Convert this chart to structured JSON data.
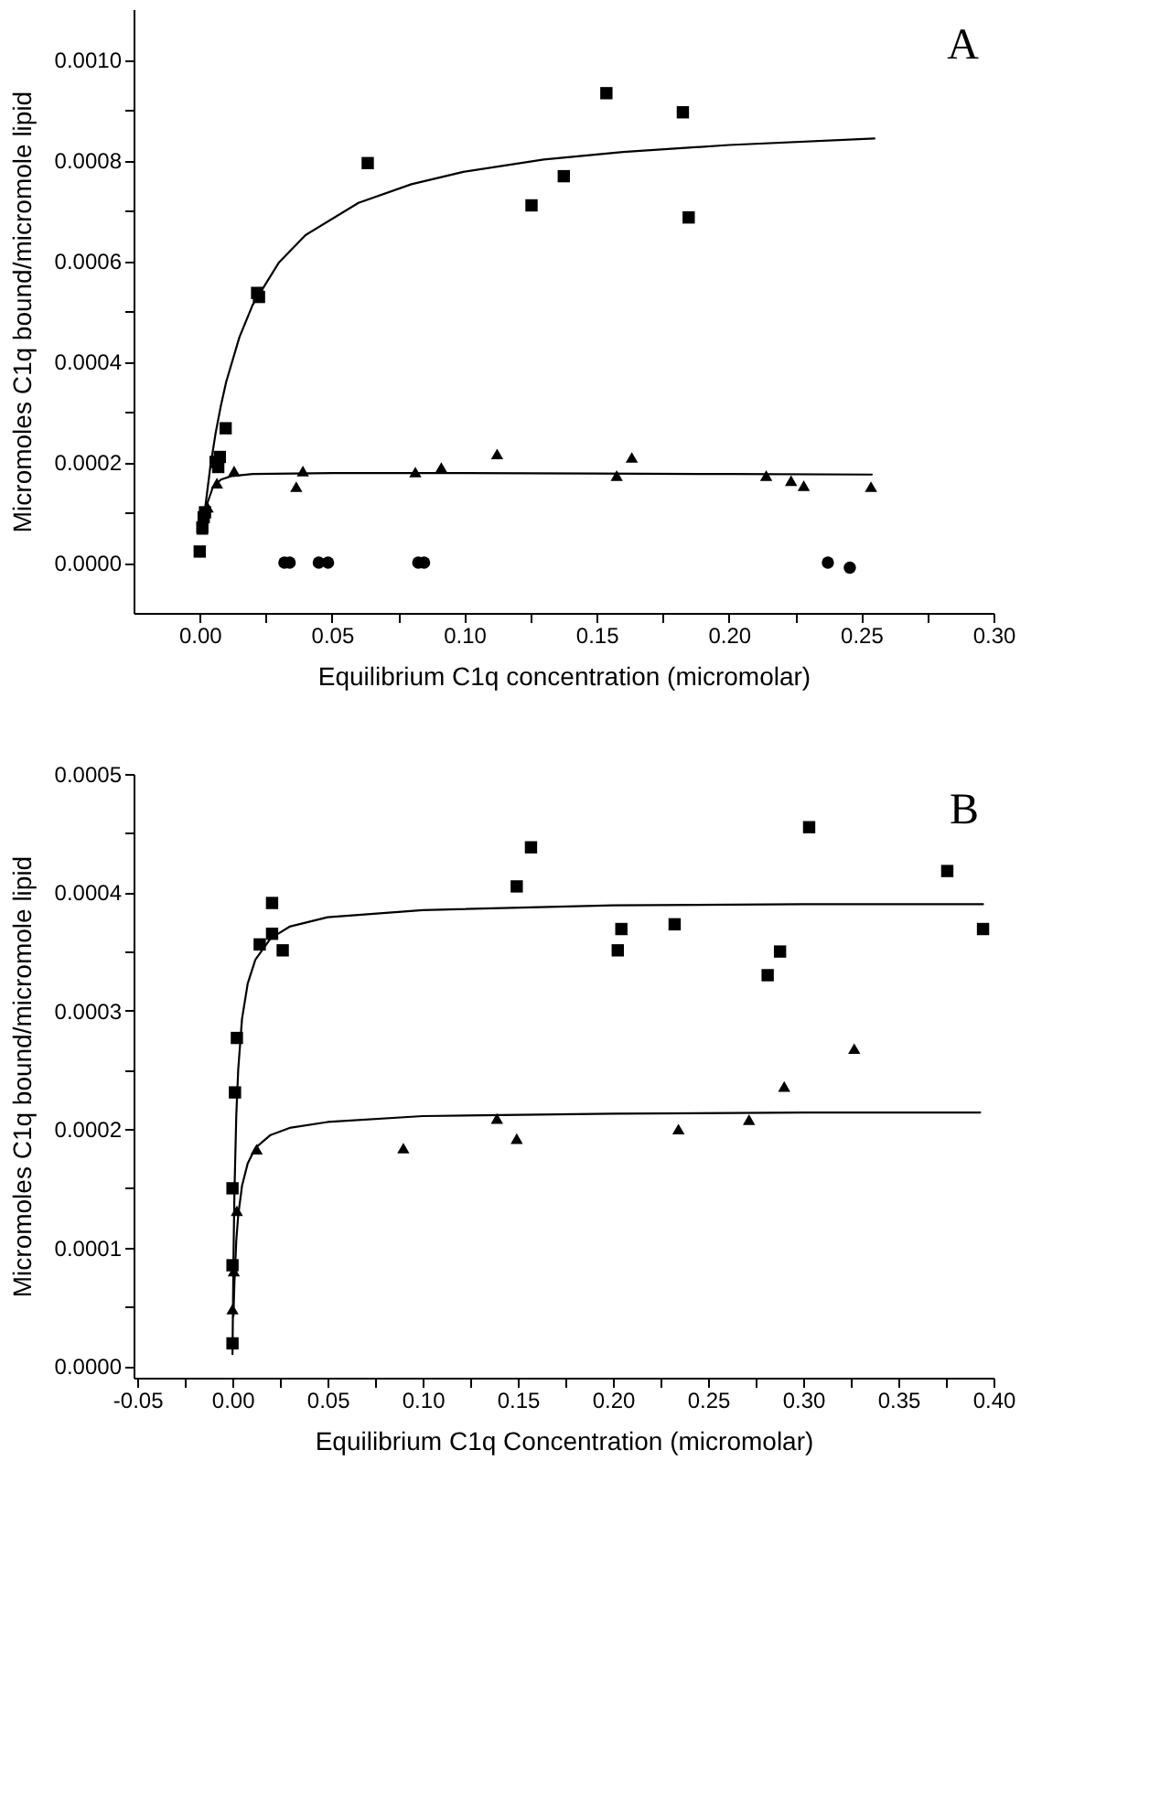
{
  "chart_data": [
    {
      "type": "scatter",
      "xlabel": "Equilibrium C1q concentration (micromolar)",
      "ylabel": "Micromoles C1q bound/micromole lipid",
      "annotations": [
        "A"
      ],
      "grid": false,
      "xlim": [
        -0.025,
        0.3
      ],
      "xticks": [
        {
          "value": 0,
          "label": "0.00"
        },
        {
          "value": 0.025,
          "label": null
        },
        {
          "value": 0.05,
          "label": "0.05"
        },
        {
          "value": 0.075,
          "label": null
        },
        {
          "value": 0.1,
          "label": "0.10"
        },
        {
          "value": 0.125,
          "label": null
        },
        {
          "value": 0.15,
          "label": "0.15"
        },
        {
          "value": 0.175,
          "label": null
        },
        {
          "value": 0.2,
          "label": "0.20"
        },
        {
          "value": 0.225,
          "label": null
        },
        {
          "value": 0.25,
          "label": "0.25"
        },
        {
          "value": 0.275,
          "label": null
        },
        {
          "value": 0.3,
          "label": "0.30"
        }
      ],
      "ylim": [
        -0.0001,
        0.0011
      ],
      "yticks": [
        {
          "value": 0,
          "label": "0.0000"
        },
        {
          "value": 0.0001,
          "label": null
        },
        {
          "value": 0.0002,
          "label": "0.0002"
        },
        {
          "value": 0.0003,
          "label": null
        },
        {
          "value": 0.0004,
          "label": "0.0004"
        },
        {
          "value": 0.0005,
          "label": null
        },
        {
          "value": 0.0006,
          "label": "0.0006"
        },
        {
          "value": 0.0007,
          "label": null
        },
        {
          "value": 0.0008,
          "label": "0.0008"
        },
        {
          "value": 0.0009,
          "label": null
        },
        {
          "value": 0.001,
          "label": "0.0010"
        }
      ],
      "series": [
        {
          "type": "line",
          "marker": "none",
          "line_style": "solid",
          "color": "#000000",
          "x": [
            0.002,
            0.004,
            0.006,
            0.008,
            0.01,
            0.015,
            0.02,
            0.03,
            0.04,
            0.06,
            0.08,
            0.1,
            0.13,
            0.16,
            0.2,
            0.255
          ],
          "values": [
            0.000106,
            0.00019,
            0.000257,
            0.000312,
            0.000359,
            0.000448,
            0.000512,
            0.000597,
            0.000651,
            0.000715,
            0.000752,
            0.000777,
            0.000801,
            0.000816,
            0.00083,
            0.000843
          ]
        },
        {
          "type": "line",
          "marker": "none",
          "line_style": "solid",
          "color": "#000000",
          "x": [
            0.001,
            0.003,
            0.005,
            0.008,
            0.012,
            0.02,
            0.05,
            0.1,
            0.15,
            0.2,
            0.254
          ],
          "values": [
            7e-05,
            0.00012,
            0.00015,
            0.000165,
            0.000172,
            0.000176,
            0.000178,
            0.000178,
            0.000177,
            0.000176,
            0.000175
          ]
        },
        {
          "marker": "square",
          "color": "#000000",
          "x": [
            0.0,
            0.001,
            0.0015,
            0.002,
            0.006,
            0.007,
            0.0076,
            0.0098,
            0.0217,
            0.0224,
            0.0635,
            0.1254,
            0.1376,
            0.1537,
            0.1826,
            0.1848
          ],
          "values": [
            2.2e-05,
            7e-05,
            9e-05,
            0.0001,
            0.0002,
            0.00019,
            0.00021,
            0.000267,
            0.000536,
            0.000528,
            0.000794,
            0.00071,
            0.000768,
            0.000933,
            0.000895,
            0.000686
          ]
        },
        {
          "marker": "triangle",
          "color": "#000000",
          "x": [
            0.001,
            0.003,
            0.0065,
            0.013,
            0.0365,
            0.039,
            0.0815,
            0.0913,
            0.1124,
            0.1576,
            0.1633,
            0.2141,
            0.2235,
            0.2283,
            0.2537
          ],
          "values": [
            6.6e-05,
            0.00011,
            0.000158,
            0.000182,
            0.000151,
            0.000182,
            0.00018,
            0.000189,
            0.000216,
            0.000173,
            0.000209,
            0.000173,
            0.000163,
            0.000153,
            0.000151
          ]
        },
        {
          "marker": "circle",
          "color": "#000000",
          "x": [
            0.032,
            0.034,
            0.045,
            0.0485,
            0.0826,
            0.0848,
            0.2374,
            0.2457
          ],
          "values": [
            0.0,
            0.0,
            0.0,
            0.0,
            0.0,
            0.0,
            0.0,
            -1e-05
          ]
        }
      ]
    },
    {
      "type": "scatter",
      "xlabel": "Equilibrium C1q Concentration (micromolar)",
      "ylabel": "Micromoles C1q bound/micromole lipid",
      "annotations": [
        "B"
      ],
      "grid": false,
      "xlim": [
        -0.052,
        0.4
      ],
      "xticks": [
        {
          "value": -0.05,
          "label": "-0.05"
        },
        {
          "value": -0.025,
          "label": null
        },
        {
          "value": 0,
          "label": "0.00"
        },
        {
          "value": 0.025,
          "label": null
        },
        {
          "value": 0.05,
          "label": "0.05"
        },
        {
          "value": 0.075,
          "label": null
        },
        {
          "value": 0.1,
          "label": "0.10"
        },
        {
          "value": 0.125,
          "label": null
        },
        {
          "value": 0.15,
          "label": "0.15"
        },
        {
          "value": 0.175,
          "label": null
        },
        {
          "value": 0.2,
          "label": "0.20"
        },
        {
          "value": 0.225,
          "label": null
        },
        {
          "value": 0.25,
          "label": "0.25"
        },
        {
          "value": 0.275,
          "label": null
        },
        {
          "value": 0.3,
          "label": "0.30"
        },
        {
          "value": 0.325,
          "label": null
        },
        {
          "value": 0.35,
          "label": "0.35"
        },
        {
          "value": 0.375,
          "label": null
        },
        {
          "value": 0.4,
          "label": "0.40"
        }
      ],
      "ylim": [
        -1e-05,
        0.0005
      ],
      "yticks": [
        {
          "value": 0,
          "label": "0.0000"
        },
        {
          "value": 5e-05,
          "label": null
        },
        {
          "value": 0.0001,
          "label": "0.0001"
        },
        {
          "value": 0.00015,
          "label": null
        },
        {
          "value": 0.0002,
          "label": "0.0002"
        },
        {
          "value": 0.00025,
          "label": null
        },
        {
          "value": 0.0003,
          "label": "0.0003"
        },
        {
          "value": 0.00035,
          "label": null
        },
        {
          "value": 0.0004,
          "label": "0.0004"
        },
        {
          "value": 0.00045,
          "label": null
        },
        {
          "value": 0.0005,
          "label": "0.0005"
        }
      ],
      "series": [
        {
          "type": "line",
          "marker": "none",
          "line_style": "solid",
          "color": "#000000",
          "x": [
            0.0,
            0.0005,
            0.001,
            0.002,
            0.003,
            0.005,
            0.008,
            0.012,
            0.02,
            0.03,
            0.05,
            0.1,
            0.2,
            0.3,
            0.3945
          ],
          "values": [
            1e-05,
            8.9e-05,
            0.000145,
            0.000212,
            0.00025,
            0.000293,
            0.000323,
            0.000343,
            0.000361,
            0.000371,
            0.000379,
            0.000385,
            0.000389,
            0.00039,
            0.00039
          ]
        },
        {
          "type": "line",
          "marker": "none",
          "line_style": "solid",
          "color": "#000000",
          "x": [
            0.0005,
            0.001,
            0.002,
            0.003,
            0.005,
            0.008,
            0.012,
            0.02,
            0.03,
            0.05,
            0.1,
            0.2,
            0.3,
            0.393
          ],
          "values": [
            4.2e-05,
            7e-05,
            0.000106,
            0.000127,
            0.000152,
            0.000171,
            0.000184,
            0.000195,
            0.000201,
            0.000206,
            0.000211,
            0.000213,
            0.000214,
            0.000214
          ]
        },
        {
          "marker": "square",
          "color": "#000000",
          "x": [
            0.0,
            0.0,
            0.0,
            0.0013,
            0.0023,
            0.0143,
            0.0208,
            0.0208,
            0.0264,
            0.1494,
            0.1569,
            0.2025,
            0.2044,
            0.2324,
            0.2813,
            0.2878,
            0.3031,
            0.3757,
            0.3945
          ],
          "values": [
            1.9e-05,
            8.5e-05,
            0.00015,
            0.000231,
            0.000277,
            0.000356,
            0.000391,
            0.000365,
            0.000351,
            0.000405,
            0.000438,
            0.000351,
            0.000369,
            0.000373,
            0.00033,
            0.00035,
            0.000455,
            0.000418,
            0.000369
          ]
        },
        {
          "marker": "triangle",
          "color": "#000000",
          "x": [
            0.0,
            0.0007,
            0.0023,
            0.0127,
            0.0898,
            0.139,
            0.1494,
            0.2344,
            0.2715,
            0.29,
            0.3268
          ],
          "values": [
            4.8e-05,
            8e-05,
            0.000131,
            0.000183,
            0.000184,
            0.000209,
            0.000192,
            0.0002,
            0.000208,
            0.000236,
            0.000268
          ]
        }
      ]
    }
  ]
}
